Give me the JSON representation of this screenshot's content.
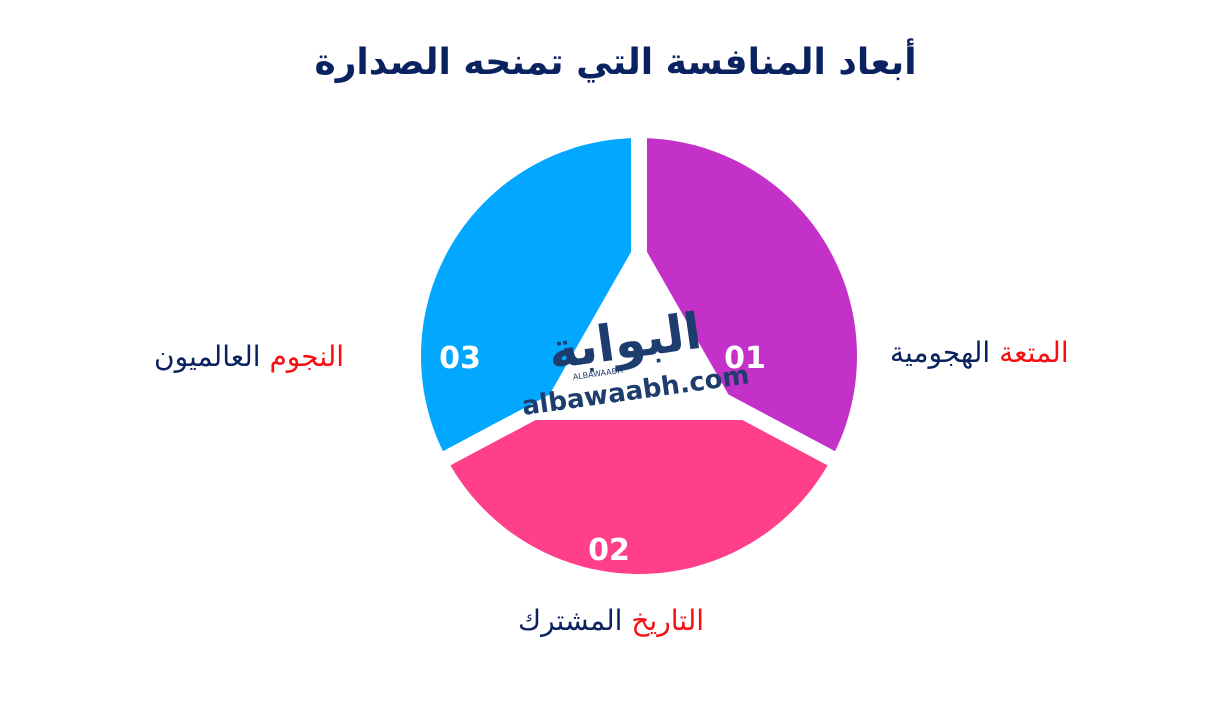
{
  "title": "أبعاد المنافسة التي تمنحه الصدارة",
  "colors": {
    "segment_01": "#c331c9",
    "segment_02": "#ff3f8a",
    "segment_03": "#02a8ff",
    "highlight": "#f50f12",
    "text": "#0b2260",
    "logo": "#1d3d6e"
  },
  "segments": [
    {
      "number": "01",
      "label_highlight": "المتعة",
      "label_rest": "الهجومية"
    },
    {
      "number": "02",
      "label_highlight": "التاريخ",
      "label_rest": "المشترك"
    },
    {
      "number": "03",
      "label_highlight": "النجوم",
      "label_rest": "العالميون"
    }
  ],
  "logo": {
    "arabic": "البوابة",
    "latin_small": "ALBAWAABH",
    "domain": "albawaabh.com"
  }
}
